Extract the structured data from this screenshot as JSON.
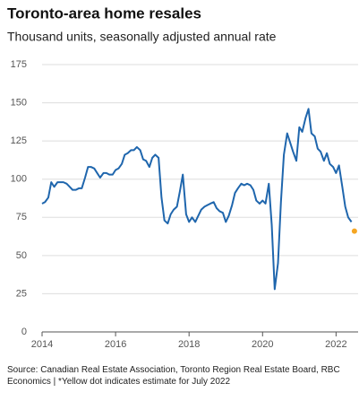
{
  "chart_data": {
    "type": "line",
    "title": "Toronto-area home resales",
    "subtitle": "Thousand units, seasonally adjusted annual rate",
    "source": "Source: Canadian Real Estate Association, Toronto Region Real Estate Board, RBC Economics | *Yellow dot indicates estimate for July 2022",
    "xlim": [
      2014,
      2022.6
    ],
    "xticks": [
      2014,
      2016,
      2018,
      2020,
      2022
    ],
    "ylim": [
      0,
      175
    ],
    "yticks": [
      0,
      25,
      50,
      75,
      100,
      125,
      150,
      175
    ],
    "grid": true,
    "series": [
      {
        "color": "#1f66ad",
        "x": [
          2014,
          2014.08,
          2014.17,
          2014.25,
          2014.33,
          2014.42,
          2014.5,
          2014.58,
          2014.67,
          2014.75,
          2014.83,
          2014.92,
          2015,
          2015.08,
          2015.17,
          2015.25,
          2015.33,
          2015.42,
          2015.5,
          2015.58,
          2015.67,
          2015.75,
          2015.83,
          2015.92,
          2016,
          2016.08,
          2016.17,
          2016.25,
          2016.33,
          2016.42,
          2016.5,
          2016.58,
          2016.67,
          2016.75,
          2016.83,
          2016.92,
          2017,
          2017.08,
          2017.17,
          2017.25,
          2017.33,
          2017.42,
          2017.5,
          2017.58,
          2017.67,
          2017.75,
          2017.83,
          2017.92,
          2018,
          2018.08,
          2018.17,
          2018.25,
          2018.33,
          2018.42,
          2018.5,
          2018.58,
          2018.67,
          2018.75,
          2018.83,
          2018.92,
          2019,
          2019.08,
          2019.17,
          2019.25,
          2019.33,
          2019.42,
          2019.5,
          2019.58,
          2019.67,
          2019.75,
          2019.83,
          2019.92,
          2020,
          2020.08,
          2020.17,
          2020.25,
          2020.33,
          2020.42,
          2020.5,
          2020.58,
          2020.67,
          2020.75,
          2020.83,
          2020.92,
          2021,
          2021.08,
          2021.17,
          2021.25,
          2021.33,
          2021.42,
          2021.5,
          2021.58,
          2021.67,
          2021.75,
          2021.83,
          2021.92,
          2022,
          2022.08,
          2022.17,
          2022.25,
          2022.33,
          2022.42
        ],
        "values": [
          84,
          85,
          88,
          98,
          95,
          98,
          98,
          98,
          97,
          95,
          93,
          93,
          94,
          94,
          101,
          108,
          108,
          107,
          104,
          101,
          104,
          104,
          103,
          103,
          106,
          107,
          110,
          116,
          117,
          119,
          119,
          121,
          119,
          113,
          112,
          108,
          114,
          116,
          114,
          88,
          73,
          71,
          77,
          80,
          82,
          92,
          103,
          77,
          72,
          75,
          72,
          76,
          80,
          82,
          83,
          84,
          85,
          81,
          79,
          78,
          72,
          76,
          83,
          91,
          94,
          97,
          96,
          97,
          96,
          93,
          86,
          84,
          86,
          84,
          97,
          70,
          28,
          45,
          85,
          116,
          130,
          124,
          118,
          112,
          134,
          131,
          140,
          146,
          130,
          128,
          120,
          118,
          112,
          117,
          110,
          108,
          104,
          109,
          95,
          82,
          75,
          72
        ]
      },
      {
        "color": "#f5a623",
        "marker": "dot",
        "x": [
          2022.5
        ],
        "values": [
          66
        ]
      }
    ]
  }
}
